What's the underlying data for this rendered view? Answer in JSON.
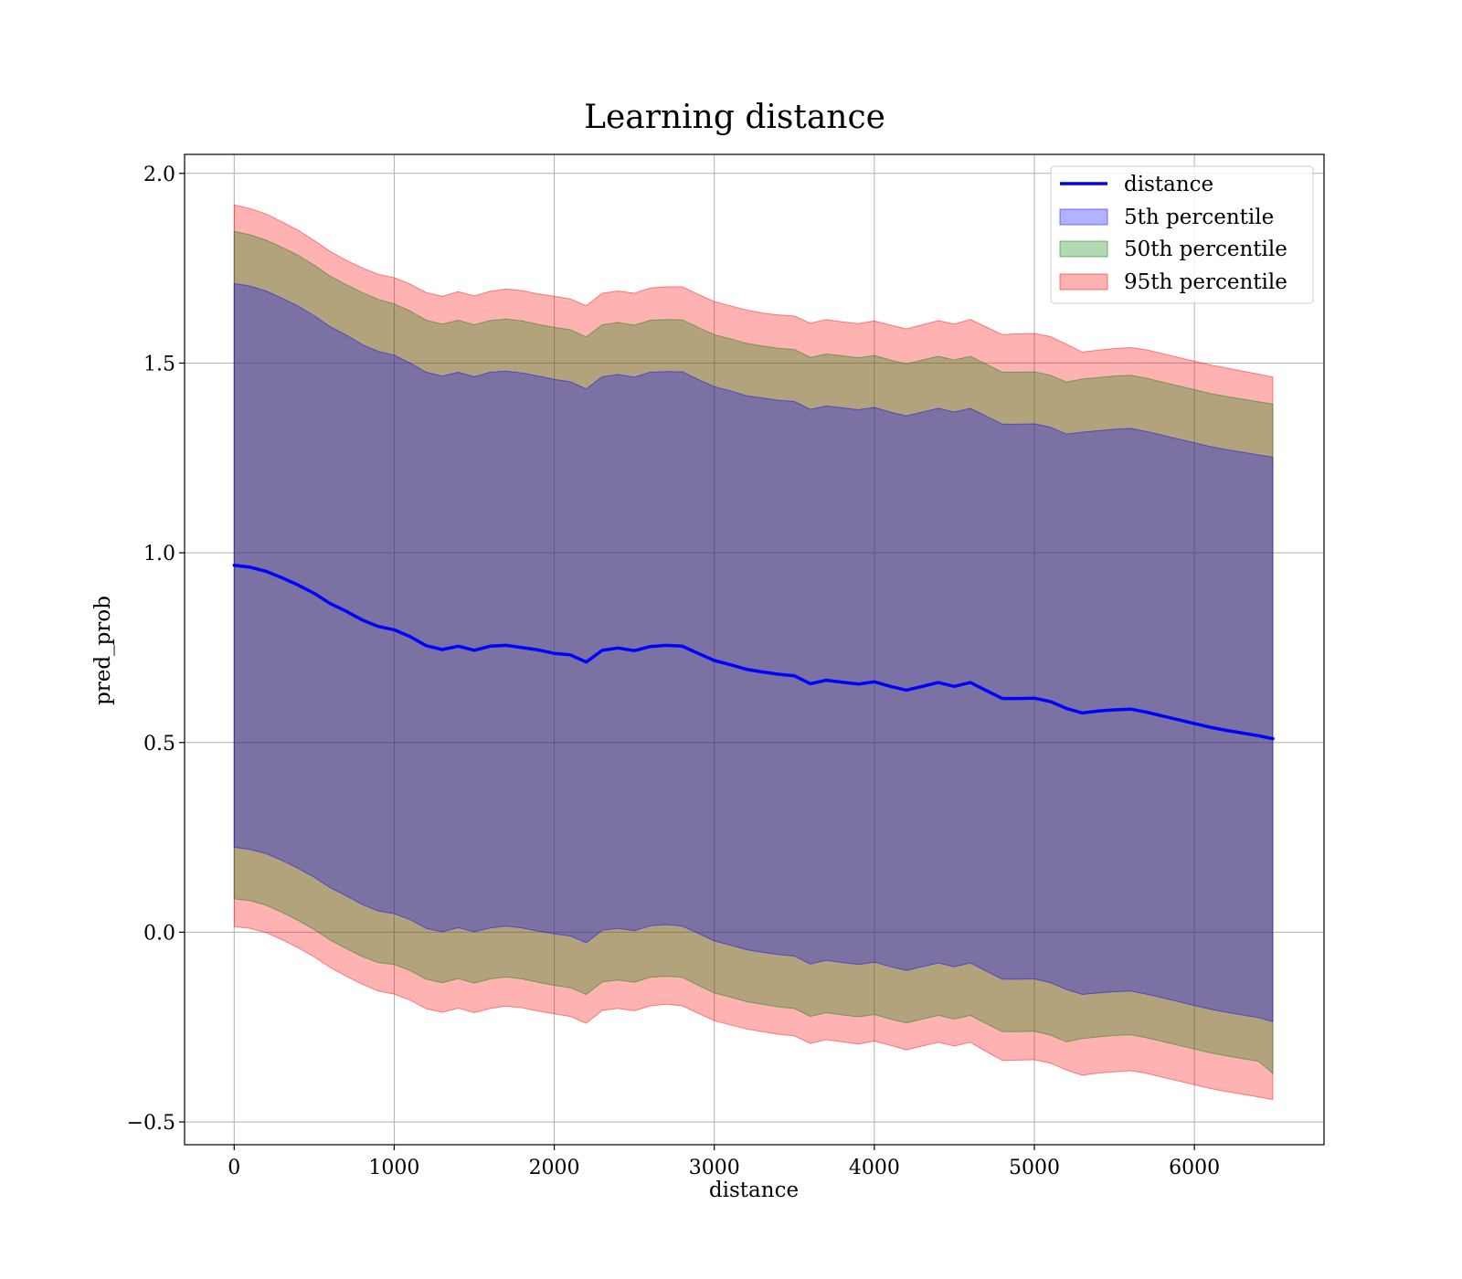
{
  "chart_data": {
    "type": "line",
    "title": "Learning distance",
    "xlabel": "distance",
    "ylabel": "pred_prob",
    "xlim": [
      -310,
      6810
    ],
    "ylim": [
      -0.56,
      2.05
    ],
    "xticks": [
      0,
      1000,
      2000,
      3000,
      4000,
      5000,
      6000
    ],
    "xtick_labels": [
      "0",
      "1000",
      "2000",
      "3000",
      "4000",
      "5000",
      "6000"
    ],
    "yticks": [
      -0.5,
      0.0,
      0.5,
      1.0,
      1.5,
      2.0
    ],
    "ytick_labels": [
      "−0.5",
      "0.0",
      "0.5",
      "1.0",
      "1.5",
      "2.0"
    ],
    "grid": true,
    "legend_position": "top-right",
    "legend": [
      "distance",
      "5th percentile",
      "50th percentile",
      "95th percentile"
    ],
    "colors": {
      "line": "#0000ff",
      "band_5": "#0000ff",
      "band_50": "#008000",
      "band_95": "#ff0000",
      "band_alpha": 0.3,
      "grid": "#b0b0b0"
    },
    "x": [
      0,
      100,
      200,
      300,
      400,
      500,
      600,
      700,
      800,
      900,
      1000,
      1100,
      1200,
      1300,
      1400,
      1500,
      1600,
      1700,
      1800,
      1900,
      2000,
      2100,
      2200,
      2300,
      2400,
      2500,
      2600,
      2700,
      2800,
      2900,
      3000,
      3100,
      3200,
      3300,
      3400,
      3500,
      3600,
      3700,
      3800,
      3900,
      4000,
      4100,
      4200,
      4300,
      4400,
      4500,
      4600,
      4700,
      4800,
      4900,
      5000,
      5100,
      5200,
      5300,
      5400,
      5500,
      5600,
      5700,
      5800,
      5900,
      6000,
      6100,
      6200,
      6300,
      6400,
      6490
    ],
    "series": [
      {
        "name": "distance",
        "values": [
          0.967,
          0.962,
          0.951,
          0.934,
          0.915,
          0.893,
          0.866,
          0.846,
          0.823,
          0.806,
          0.797,
          0.779,
          0.755,
          0.745,
          0.754,
          0.743,
          0.754,
          0.756,
          0.75,
          0.744,
          0.735,
          0.731,
          0.712,
          0.743,
          0.749,
          0.742,
          0.753,
          0.756,
          0.754,
          0.735,
          0.716,
          0.705,
          0.693,
          0.686,
          0.68,
          0.676,
          0.655,
          0.664,
          0.659,
          0.654,
          0.66,
          0.648,
          0.638,
          0.648,
          0.658,
          0.648,
          0.658,
          0.637,
          0.616,
          0.616,
          0.617,
          0.608,
          0.59,
          0.578,
          0.583,
          0.586,
          0.588,
          0.58,
          0.57,
          0.56,
          0.55,
          0.54,
          0.532,
          0.525,
          0.518,
          0.51
        ]
      }
    ],
    "bands": [
      {
        "name": "95th percentile",
        "upper": [
          1.917,
          1.907,
          1.893,
          1.872,
          1.85,
          1.823,
          1.794,
          1.771,
          1.751,
          1.734,
          1.725,
          1.708,
          1.686,
          1.676,
          1.688,
          1.677,
          1.689,
          1.695,
          1.691,
          1.682,
          1.676,
          1.669,
          1.651,
          1.684,
          1.69,
          1.684,
          1.698,
          1.701,
          1.701,
          1.681,
          1.662,
          1.651,
          1.64,
          1.632,
          1.627,
          1.624,
          1.605,
          1.615,
          1.609,
          1.604,
          1.611,
          1.6,
          1.59,
          1.601,
          1.612,
          1.603,
          1.615,
          1.595,
          1.575,
          1.577,
          1.578,
          1.57,
          1.55,
          1.529,
          1.534,
          1.538,
          1.541,
          1.535,
          1.525,
          1.515,
          1.505,
          1.495,
          1.487,
          1.479,
          1.471,
          1.463
        ],
        "lower": [
          0.015,
          0.01,
          -0.001,
          -0.02,
          -0.041,
          -0.065,
          -0.093,
          -0.116,
          -0.137,
          -0.155,
          -0.163,
          -0.179,
          -0.202,
          -0.211,
          -0.2,
          -0.212,
          -0.201,
          -0.195,
          -0.199,
          -0.208,
          -0.215,
          -0.222,
          -0.24,
          -0.206,
          -0.201,
          -0.207,
          -0.194,
          -0.19,
          -0.194,
          -0.214,
          -0.233,
          -0.244,
          -0.255,
          -0.262,
          -0.269,
          -0.273,
          -0.293,
          -0.283,
          -0.289,
          -0.295,
          -0.287,
          -0.298,
          -0.31,
          -0.3,
          -0.29,
          -0.3,
          -0.29,
          -0.315,
          -0.338,
          -0.337,
          -0.336,
          -0.345,
          -0.363,
          -0.377,
          -0.371,
          -0.368,
          -0.365,
          -0.372,
          -0.382,
          -0.392,
          -0.402,
          -0.412,
          -0.42,
          -0.427,
          -0.434,
          -0.441
        ]
      },
      {
        "name": "50th percentile",
        "upper": [
          1.847,
          1.838,
          1.824,
          1.805,
          1.784,
          1.758,
          1.729,
          1.707,
          1.686,
          1.668,
          1.656,
          1.637,
          1.613,
          1.603,
          1.613,
          1.601,
          1.612,
          1.616,
          1.611,
          1.602,
          1.594,
          1.588,
          1.569,
          1.601,
          1.607,
          1.6,
          1.613,
          1.615,
          1.614,
          1.594,
          1.575,
          1.564,
          1.552,
          1.545,
          1.539,
          1.536,
          1.515,
          1.524,
          1.519,
          1.514,
          1.52,
          1.508,
          1.498,
          1.508,
          1.518,
          1.508,
          1.518,
          1.497,
          1.476,
          1.476,
          1.477,
          1.468,
          1.45,
          1.458,
          1.462,
          1.466,
          1.468,
          1.46,
          1.45,
          1.44,
          1.43,
          1.42,
          1.412,
          1.405,
          1.398,
          1.392
        ],
        "lower": [
          0.088,
          0.083,
          0.071,
          0.052,
          0.031,
          0.007,
          -0.021,
          -0.043,
          -0.064,
          -0.08,
          -0.085,
          -0.101,
          -0.124,
          -0.133,
          -0.122,
          -0.134,
          -0.123,
          -0.118,
          -0.123,
          -0.132,
          -0.14,
          -0.146,
          -0.164,
          -0.131,
          -0.126,
          -0.132,
          -0.119,
          -0.116,
          -0.119,
          -0.14,
          -0.16,
          -0.171,
          -0.183,
          -0.19,
          -0.197,
          -0.201,
          -0.222,
          -0.212,
          -0.218,
          -0.223,
          -0.217,
          -0.229,
          -0.239,
          -0.229,
          -0.219,
          -0.229,
          -0.219,
          -0.241,
          -0.262,
          -0.262,
          -0.261,
          -0.271,
          -0.289,
          -0.28,
          -0.276,
          -0.272,
          -0.27,
          -0.278,
          -0.288,
          -0.298,
          -0.308,
          -0.318,
          -0.326,
          -0.333,
          -0.34,
          -0.372
        ]
      },
      {
        "name": "5th percentile",
        "upper": [
          1.71,
          1.703,
          1.69,
          1.671,
          1.65,
          1.625,
          1.596,
          1.574,
          1.549,
          1.531,
          1.521,
          1.5,
          1.476,
          1.466,
          1.476,
          1.464,
          1.476,
          1.479,
          1.474,
          1.466,
          1.457,
          1.451,
          1.432,
          1.464,
          1.47,
          1.463,
          1.476,
          1.478,
          1.477,
          1.457,
          1.438,
          1.427,
          1.414,
          1.408,
          1.402,
          1.399,
          1.378,
          1.387,
          1.382,
          1.377,
          1.383,
          1.371,
          1.361,
          1.371,
          1.381,
          1.371,
          1.381,
          1.36,
          1.339,
          1.339,
          1.34,
          1.331,
          1.313,
          1.318,
          1.322,
          1.326,
          1.328,
          1.32,
          1.31,
          1.3,
          1.29,
          1.28,
          1.272,
          1.265,
          1.258,
          1.252
        ],
        "lower": [
          0.224,
          0.218,
          0.207,
          0.189,
          0.168,
          0.145,
          0.117,
          0.096,
          0.073,
          0.056,
          0.049,
          0.033,
          0.01,
          0.001,
          0.012,
          0.001,
          0.011,
          0.016,
          0.011,
          0.003,
          -0.004,
          -0.01,
          -0.028,
          0.005,
          0.01,
          0.004,
          0.017,
          0.02,
          0.016,
          -0.003,
          -0.023,
          -0.034,
          -0.046,
          -0.053,
          -0.059,
          -0.063,
          -0.084,
          -0.074,
          -0.08,
          -0.085,
          -0.079,
          -0.091,
          -0.101,
          -0.091,
          -0.081,
          -0.091,
          -0.081,
          -0.103,
          -0.124,
          -0.124,
          -0.123,
          -0.133,
          -0.151,
          -0.164,
          -0.16,
          -0.157,
          -0.155,
          -0.163,
          -0.173,
          -0.183,
          -0.193,
          -0.203,
          -0.211,
          -0.218,
          -0.225,
          -0.236
        ]
      }
    ]
  }
}
